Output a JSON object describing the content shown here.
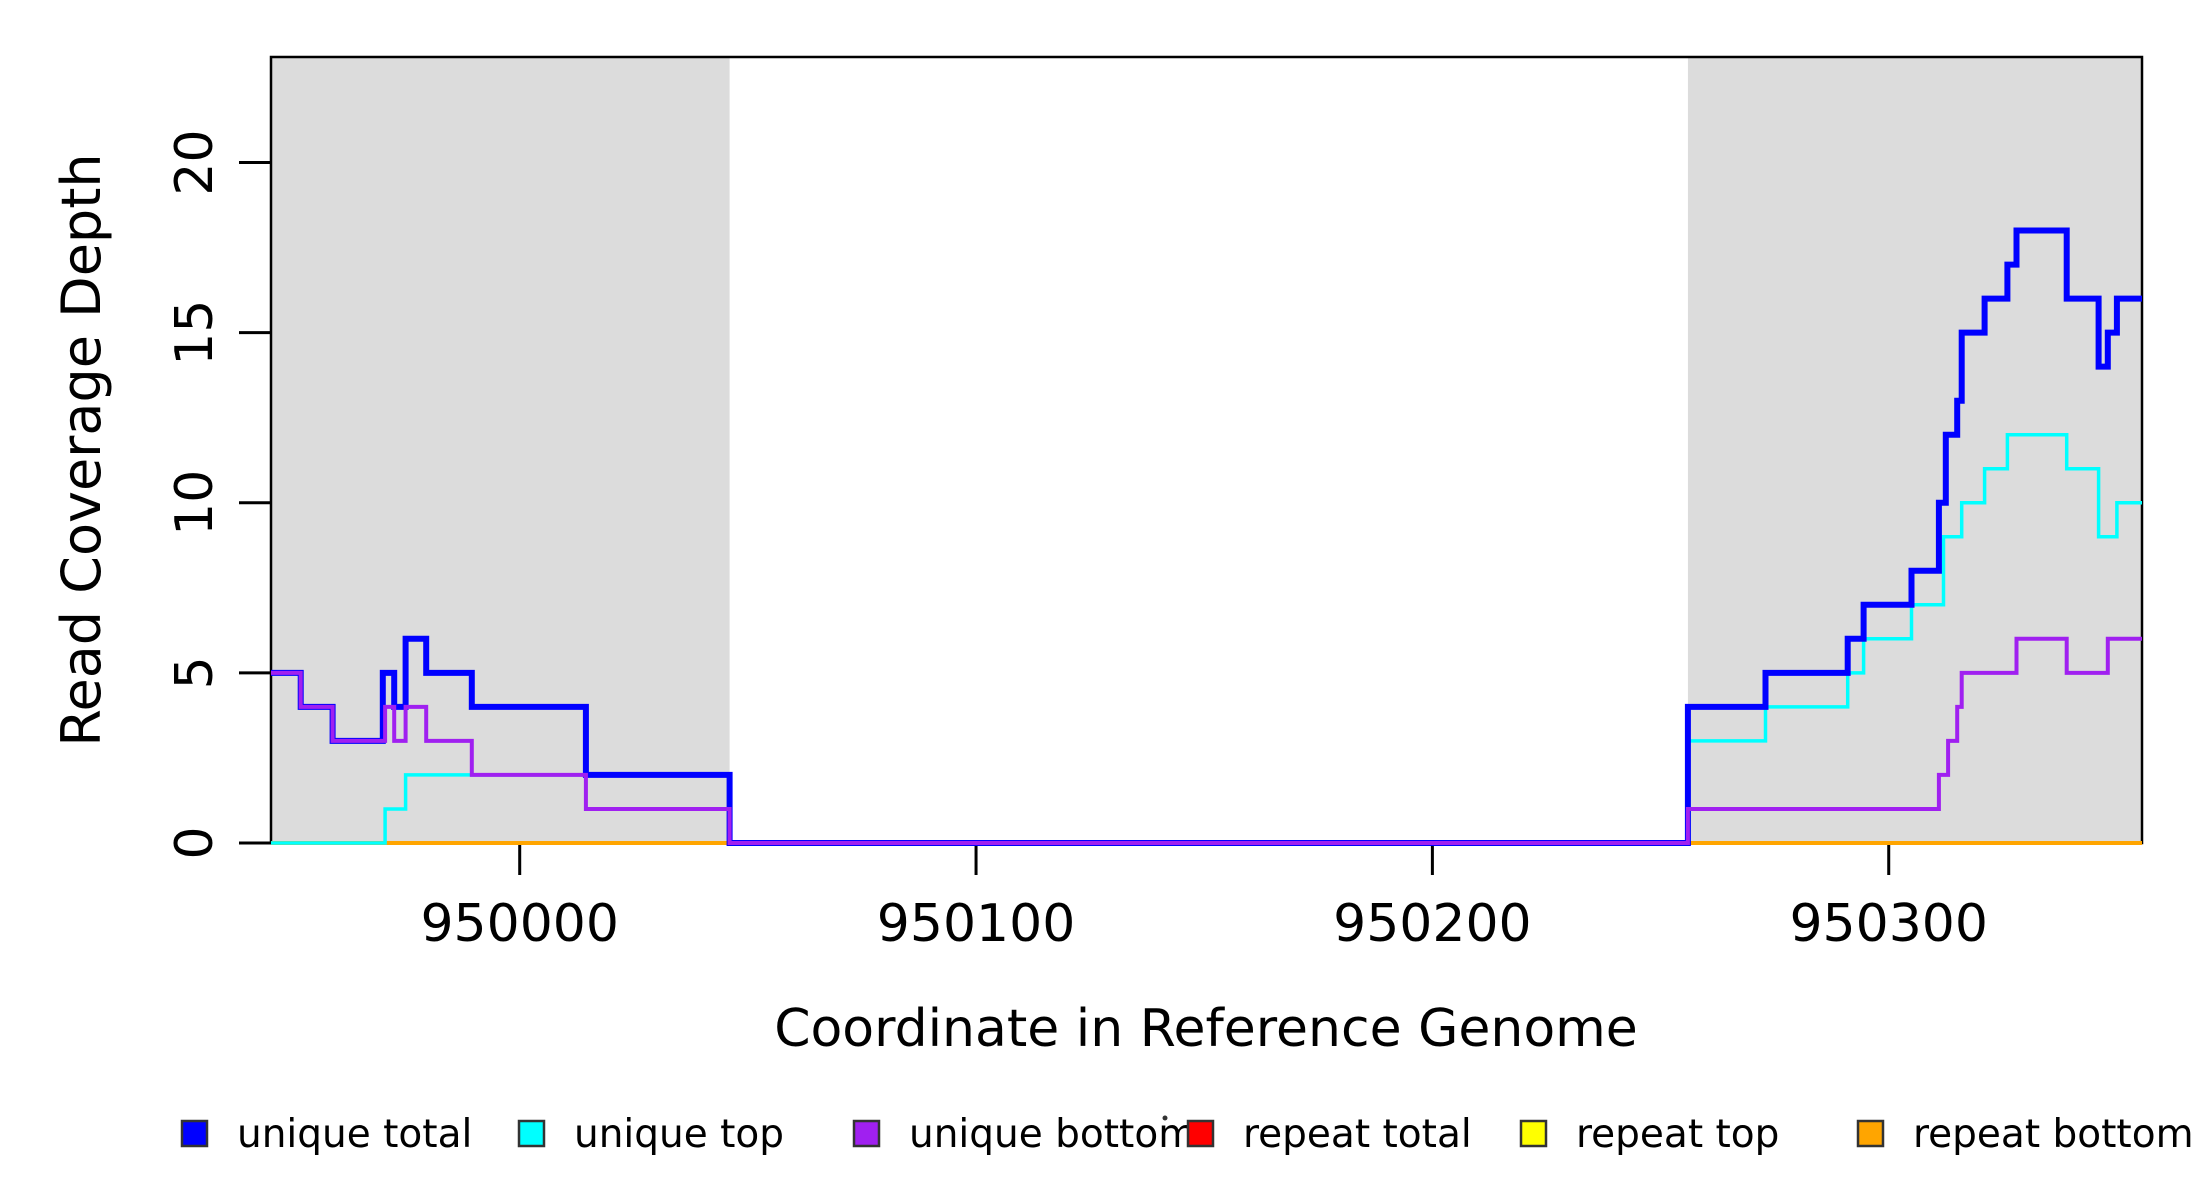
{
  "chart_data": {
    "type": "line",
    "subtype": "step-after-coverage",
    "title": "",
    "xlabel": "Coordinate in Reference Genome",
    "ylabel": "Read Coverage Depth",
    "xlim": [
      949945.5,
      950355.5
    ],
    "ylim": [
      0,
      23.1
    ],
    "grid": false,
    "x_ticks": [
      950000,
      950100,
      950200,
      950300
    ],
    "y_ticks": [
      0,
      5,
      10,
      15,
      20
    ],
    "shaded_regions": {
      "color": "#DCDCDC",
      "intervals": [
        [
          949945.5,
          950046
        ],
        [
          950256,
          950355.5
        ]
      ]
    },
    "series": [
      {
        "name": "repeat total",
        "color": "#FF0000",
        "width": 4,
        "steps": [
          [
            949945.5,
            0
          ]
        ]
      },
      {
        "name": "repeat top",
        "color": "#FFFF00",
        "width": 4,
        "steps": [
          [
            949945.5,
            0
          ]
        ]
      },
      {
        "name": "repeat bottom",
        "color": "#FFA500",
        "width": 4,
        "steps": [
          [
            949945.5,
            0
          ]
        ]
      },
      {
        "name": "unique top",
        "color": "#00FFFF",
        "width": 3.5,
        "steps": [
          [
            949945.5,
            0
          ],
          [
            949970.5,
            1
          ],
          [
            949975,
            2
          ],
          [
            950046,
            0
          ],
          [
            950256,
            3
          ],
          [
            950273,
            4
          ],
          [
            950291,
            5
          ],
          [
            950294.5,
            6
          ],
          [
            950305,
            7
          ],
          [
            950312,
            9
          ],
          [
            950316,
            10
          ],
          [
            950321,
            11
          ],
          [
            950326,
            12
          ],
          [
            950339,
            11
          ],
          [
            950346,
            9
          ],
          [
            950350,
            10
          ]
        ]
      },
      {
        "name": "unique total",
        "color": "#0000FF",
        "width": 6,
        "steps": [
          [
            949945.5,
            5
          ],
          [
            949952,
            4
          ],
          [
            949959,
            3
          ],
          [
            949970,
            5
          ],
          [
            949972.5,
            4
          ],
          [
            949975,
            6
          ],
          [
            949979.5,
            5
          ],
          [
            949989.5,
            4
          ],
          [
            950014.5,
            2
          ],
          [
            950046,
            0
          ],
          [
            950256,
            4
          ],
          [
            950273,
            5
          ],
          [
            950291,
            6
          ],
          [
            950294.5,
            7
          ],
          [
            950305,
            8
          ],
          [
            950311,
            10
          ],
          [
            950312.5,
            12
          ],
          [
            950315,
            13
          ],
          [
            950316,
            15
          ],
          [
            950321,
            16
          ],
          [
            950326,
            17
          ],
          [
            950328,
            18
          ],
          [
            950339,
            16
          ],
          [
            950346,
            14
          ],
          [
            950348,
            15
          ],
          [
            950350,
            16
          ]
        ]
      },
      {
        "name": "unique bottom",
        "color": "#A020F0",
        "width": 4,
        "steps": [
          [
            949945.5,
            5
          ],
          [
            949952,
            4
          ],
          [
            949959,
            3
          ],
          [
            949970.5,
            4
          ],
          [
            949972.5,
            3
          ],
          [
            949975,
            4
          ],
          [
            949979.5,
            3
          ],
          [
            949989.5,
            2
          ],
          [
            950014.5,
            1
          ],
          [
            950046,
            0
          ],
          [
            950256,
            1
          ],
          [
            950311,
            2
          ],
          [
            950313,
            3
          ],
          [
            950315,
            4
          ],
          [
            950316,
            5
          ],
          [
            950328,
            6
          ],
          [
            950339,
            5
          ],
          [
            950348,
            6
          ]
        ]
      }
    ],
    "legend": {
      "position": "bottom",
      "entries": [
        {
          "label": "unique total",
          "color": "#0000FF"
        },
        {
          "label": "unique top",
          "color": "#00FFFF"
        },
        {
          "label": "unique bottom",
          "color": "#A020F0"
        },
        {
          "label": "repeat total",
          "color": "#FF0000"
        },
        {
          "label": "repeat top",
          "color": "#FFFF00"
        },
        {
          "label": "repeat bottom",
          "color": "#FFA500"
        }
      ]
    }
  }
}
